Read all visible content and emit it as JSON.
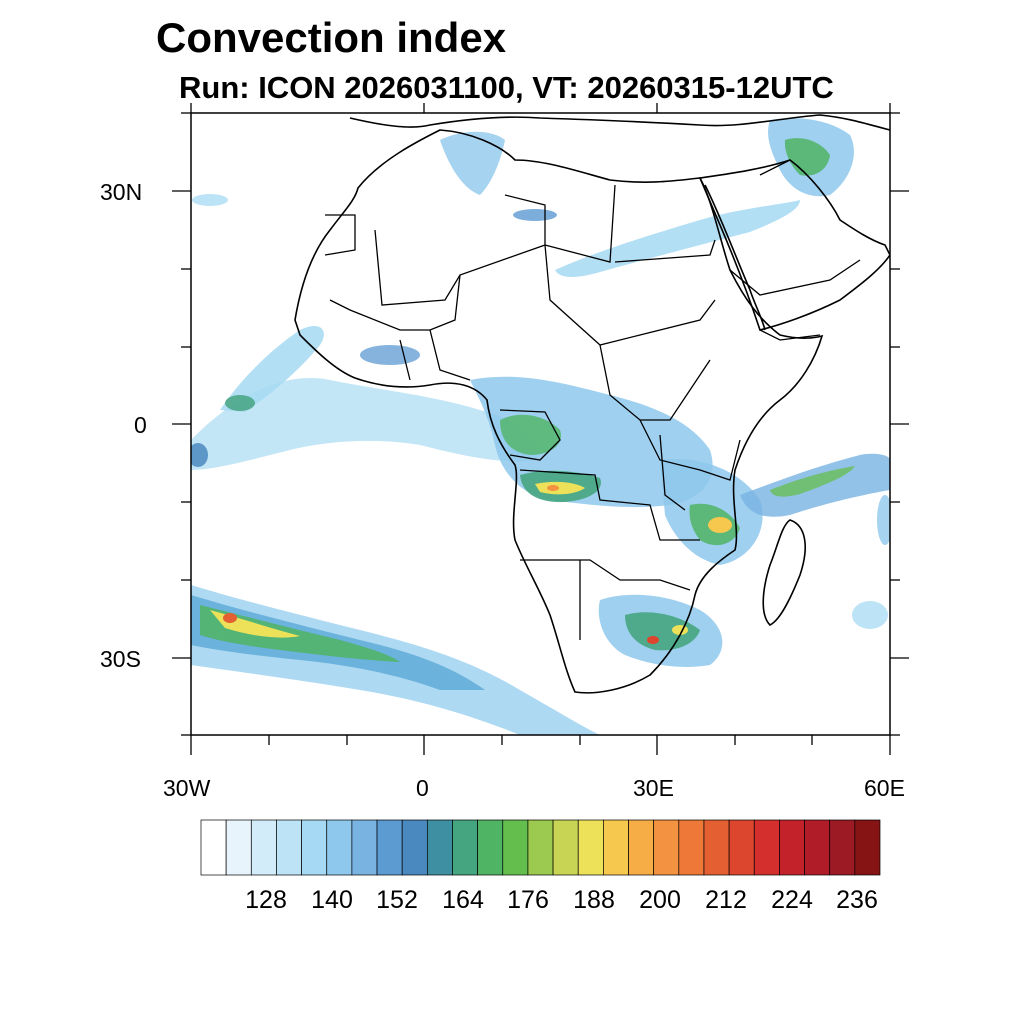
{
  "title": "Convection index",
  "subtitle": "Run: ICON 2026031100,  VT: 20260315-12UTC",
  "map": {
    "region": "Africa",
    "lon_range": [
      -30,
      60
    ],
    "lat_range": [
      -40,
      40
    ],
    "lat_ticks": [
      {
        "value": 30,
        "label": "30N"
      },
      {
        "value": 0,
        "label": "0"
      },
      {
        "value": -30,
        "label": "30S"
      }
    ],
    "lon_ticks": [
      {
        "value": -30,
        "label": "30W"
      },
      {
        "value": 0,
        "label": "0"
      },
      {
        "value": 30,
        "label": "30E"
      },
      {
        "value": 60,
        "label": "60E"
      }
    ],
    "field": "convection index"
  },
  "colorbar": {
    "labels": [
      "128",
      "140",
      "152",
      "164",
      "176",
      "188",
      "200",
      "212",
      "224",
      "236"
    ],
    "colors": [
      "#ffffff",
      "#e8f4fc",
      "#d2ecf9",
      "#bde3f6",
      "#a6d9f3",
      "#8ec8ec",
      "#78b3e2",
      "#5c9ad2",
      "#4a88c0",
      "#3e8fa2",
      "#45a580",
      "#4fb463",
      "#64be4e",
      "#9cc94f",
      "#c8d454",
      "#ede15a",
      "#f7c84e",
      "#f6ad45",
      "#f39240",
      "#ed7838",
      "#e45f32",
      "#dc462e",
      "#d42f2c",
      "#c4222b",
      "#b01d28",
      "#9c1a24",
      "#861414"
    ]
  }
}
